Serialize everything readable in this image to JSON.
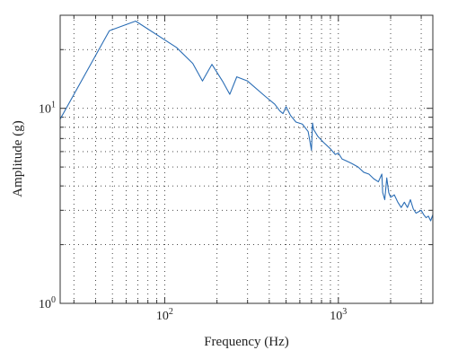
{
  "chart_data": {
    "type": "line",
    "xscale": "log",
    "yscale": "log",
    "xlim": [
      25,
      3500
    ],
    "ylim": [
      1,
      30
    ],
    "xlabel": "Frequency (Hz)",
    "ylabel": "Amplitude (g)",
    "grid": true,
    "x_ticks": [
      {
        "value": 100,
        "base": "10",
        "exp": "2"
      },
      {
        "value": 1000,
        "base": "10",
        "exp": "3"
      }
    ],
    "y_ticks": [
      {
        "value": 1,
        "base": "10",
        "exp": "0"
      },
      {
        "value": 10,
        "base": "10",
        "exp": "1"
      }
    ],
    "series": [
      {
        "color": "#2a6db5",
        "x": [
          25,
          48,
          68,
          117,
          145,
          165,
          187,
          215,
          237,
          260,
          300,
          380,
          430,
          460,
          480,
          500,
          530,
          570,
          620,
          670,
          700,
          710,
          720,
          760,
          820,
          900,
          960,
          1000,
          1050,
          1100,
          1150,
          1200,
          1300,
          1400,
          1500,
          1600,
          1700,
          1780,
          1800,
          1850,
          1900,
          1950,
          2000,
          2100,
          2200,
          2300,
          2400,
          2500,
          2600,
          2700,
          2800,
          2900,
          3000,
          3100,
          3200,
          3300,
          3400,
          3500
        ],
        "y": [
          8.8,
          25,
          28,
          20.5,
          17,
          13.8,
          16.8,
          13.8,
          11.8,
          14.5,
          13.8,
          11.5,
          10.5,
          9.7,
          9.4,
          10.2,
          9.2,
          8.5,
          8.3,
          7.6,
          6.1,
          8.4,
          7.8,
          7.2,
          6.7,
          6.2,
          5.8,
          5.9,
          5.5,
          5.4,
          5.3,
          5.2,
          5.0,
          4.7,
          4.6,
          4.35,
          4.2,
          4.6,
          3.7,
          3.4,
          4.4,
          3.7,
          3.5,
          3.6,
          3.3,
          3.1,
          3.3,
          3.1,
          3.4,
          3.05,
          2.9,
          2.95,
          3.0,
          2.85,
          2.75,
          2.8,
          2.65,
          2.85
        ]
      }
    ]
  }
}
